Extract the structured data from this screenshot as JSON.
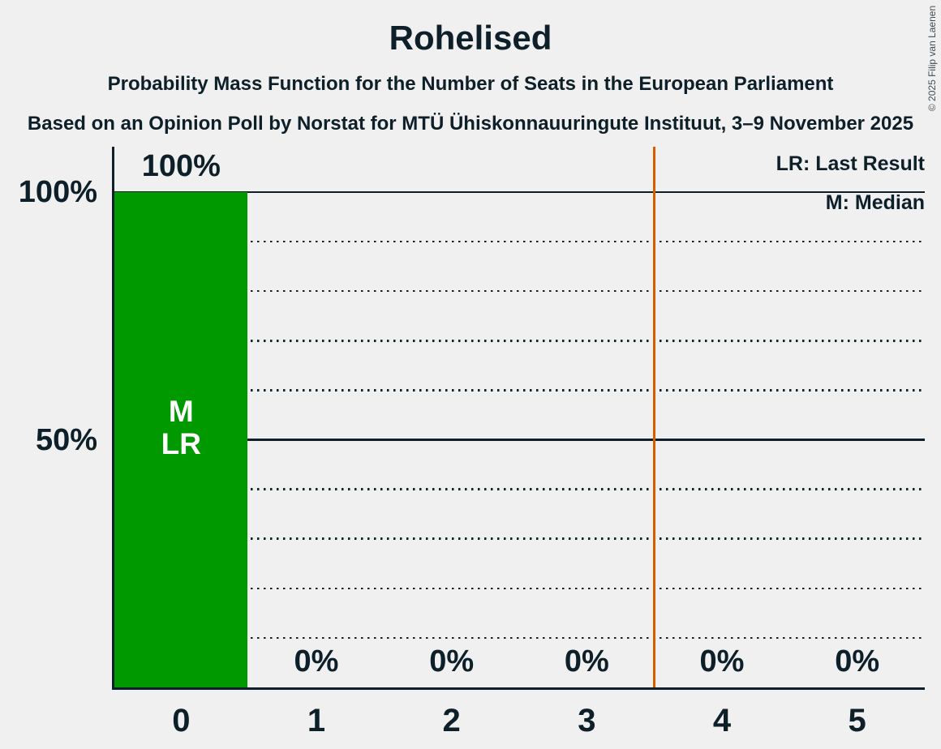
{
  "title": "Rohelised",
  "subtitles": [
    "Probability Mass Function for the Number of Seats in the European Parliament",
    "Based on an Opinion Poll by Norstat for MTÜ Ühiskonnauuringute Instituut, 3–9 November 2025"
  ],
  "copyright": "© 2025 Filip van Laenen",
  "legend": {
    "items": [
      "LR: Last Result",
      "M: Median"
    ]
  },
  "colors": {
    "background": "#f0f0f0",
    "text": "#0d1f29",
    "bar": "#009900",
    "bar_annotation": "#ffffff",
    "reference_line": "#d55f00"
  },
  "chart_data": {
    "type": "bar",
    "title": "Rohelised",
    "categories": [
      "0",
      "1",
      "2",
      "3",
      "4",
      "5"
    ],
    "values": [
      100,
      0,
      0,
      0,
      0,
      0
    ],
    "value_labels": [
      "100%",
      "0%",
      "0%",
      "0%",
      "0%",
      "0%"
    ],
    "ylim": [
      0,
      100
    ],
    "y_ticks": [
      {
        "label": "100%",
        "value": 100
      },
      {
        "label": "50%",
        "value": 50
      }
    ],
    "grid": {
      "solid": [
        100,
        50
      ],
      "dotted": [
        90,
        80,
        70,
        60,
        40,
        30,
        20,
        10
      ]
    },
    "annotations": [
      {
        "category_index": 0,
        "lines": [
          "M",
          "LR"
        ]
      }
    ],
    "reference_line": {
      "position_between_categories": 3.5
    },
    "legend_position": "top-right",
    "median_seats": 0,
    "last_result_seats": 0
  }
}
